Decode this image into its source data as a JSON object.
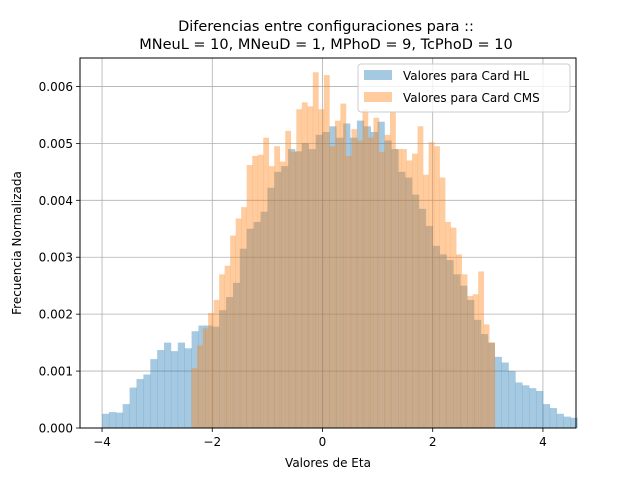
{
  "chart_data": {
    "type": "histogram",
    "title_line1": "Diferencias entre configuraciones para ::",
    "title_line2": "MNeuL = 10, MNeuD = 1, MPhoD = 9, TcPhoD = 10",
    "xlabel": "Valores de Eta",
    "ylabel": "Frecuencia Normalizada",
    "xlim": [
      -4.4,
      4.6
    ],
    "ylim": [
      0,
      0.0065
    ],
    "xticks": [
      -4,
      -2,
      0,
      2,
      4
    ],
    "xtick_labels": [
      "−4",
      "−2",
      "0",
      "2",
      "4"
    ],
    "yticks": [
      0,
      0.001,
      0.002,
      0.003,
      0.004,
      0.005,
      0.006
    ],
    "ytick_labels": [
      "0.000",
      "0.001",
      "0.002",
      "0.003",
      "0.004",
      "0.005",
      "0.006"
    ],
    "grid": true,
    "legend_position": "top-right",
    "series": [
      {
        "name": "Valores para Card HL",
        "color": "#1f77b4",
        "alpha": 0.4,
        "bin_start": -4.0,
        "bin_width": 0.125,
        "values": [
          0.00025,
          0.00028,
          0.00027,
          0.00042,
          0.00071,
          0.00086,
          0.00094,
          0.00121,
          0.00137,
          0.0015,
          0.00135,
          0.0015,
          0.0014,
          0.0017,
          0.0018,
          0.0018,
          0.00178,
          0.00207,
          0.0023,
          0.00255,
          0.00315,
          0.0035,
          0.00362,
          0.0038,
          0.00422,
          0.0045,
          0.0046,
          0.0049,
          0.00486,
          0.005,
          0.0049,
          0.00515,
          0.0052,
          0.0053,
          0.0051,
          0.00535,
          0.0051,
          0.0054,
          0.0053,
          0.0052,
          0.00538,
          0.00505,
          0.0049,
          0.0045,
          0.0044,
          0.0041,
          0.00385,
          0.00355,
          0.0032,
          0.00305,
          0.00295,
          0.0027,
          0.0025,
          0.00225,
          0.0019,
          0.00165,
          0.0015,
          0.00125,
          0.00115,
          0.001,
          0.0008,
          0.00075,
          0.0007,
          0.00065,
          0.00042,
          0.00035,
          0.00025,
          0.0002,
          0.00018
        ]
      },
      {
        "name": "Valores para Card CMS",
        "color": "#ff7f0e",
        "alpha": 0.4,
        "bin_start": -2.375,
        "bin_width": 0.1,
        "values": [
          0.00105,
          0.00145,
          0.00175,
          0.00202,
          0.00225,
          0.0027,
          0.00285,
          0.00338,
          0.00368,
          0.00388,
          0.00462,
          0.00478,
          0.0048,
          0.0051,
          0.0046,
          0.00495,
          0.00468,
          0.00522,
          0.00485,
          0.0056,
          0.00572,
          0.00565,
          0.00625,
          0.0056,
          0.0062,
          0.00495,
          0.0054,
          0.0057,
          0.00478,
          0.00525,
          0.00505,
          0.0056,
          0.0051,
          0.00545,
          0.00485,
          0.00515,
          0.00555,
          0.0049,
          0.0049,
          0.0047,
          0.00482,
          0.0053,
          0.00445,
          0.00502,
          0.00495,
          0.0044,
          0.00362,
          0.00352,
          0.00305,
          0.0027,
          0.00232,
          0.00235,
          0.00275,
          0.00182,
          0.0015
        ]
      }
    ]
  }
}
